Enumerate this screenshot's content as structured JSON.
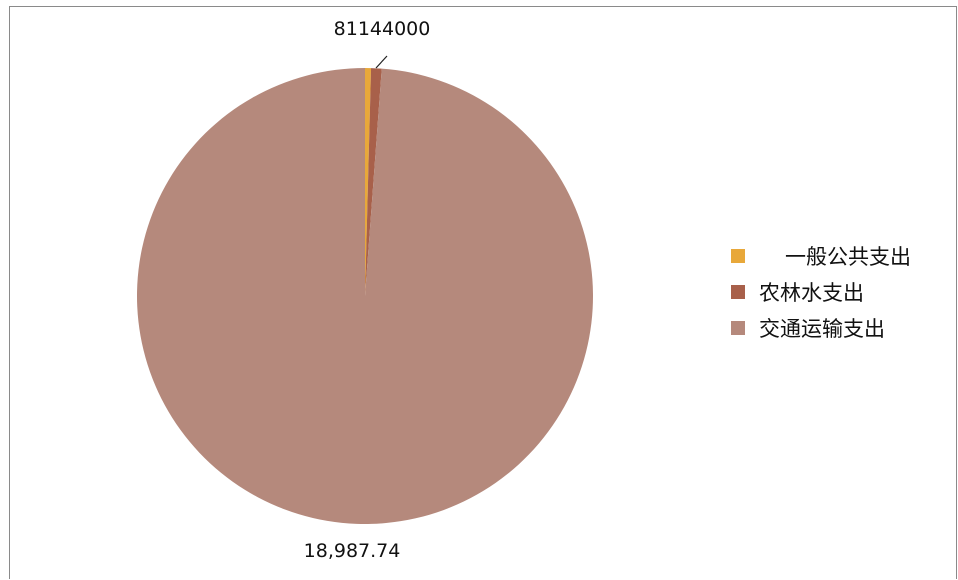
{
  "chart_data": {
    "type": "pie",
    "title": "",
    "legend_position": "right",
    "series": [
      {
        "name": "一般公共支出",
        "value": 81,
        "label": "81",
        "color": "#E8A83A"
      },
      {
        "name": "农林水支出",
        "value": 144,
        "label": "144",
        "color": "#A8604A"
      },
      {
        "name": "交通运输支出",
        "value": 18987.74,
        "label": "18,987.74",
        "color": "#B5897C"
      }
    ],
    "overlapping_label_text": "81144000"
  }
}
